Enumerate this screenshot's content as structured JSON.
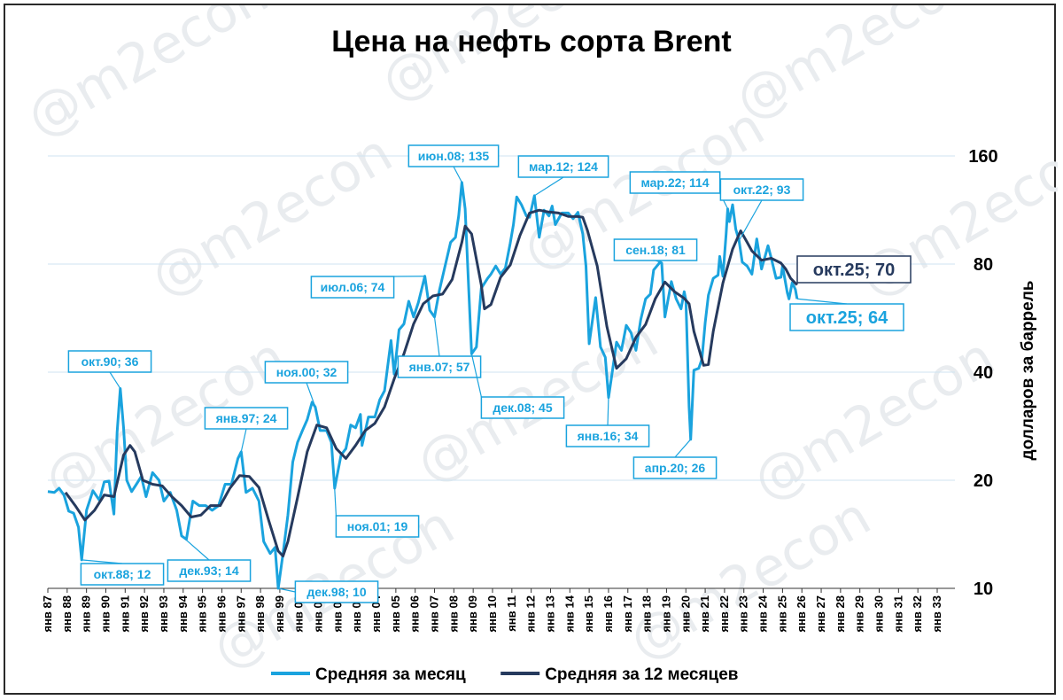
{
  "colors": {
    "monthly": "#1aa3de",
    "annual": "#263a5e",
    "grid": "#cfe3f2"
  },
  "watermark": "@m2econ",
  "chart_data": {
    "type": "line",
    "title": "Цена на нефть сорта Brent",
    "ylabel": "долларов за баррель",
    "yscale": "log",
    "ylim": [
      10,
      160
    ],
    "y_ticks": [
      "10",
      "20",
      "40",
      "80",
      "160"
    ],
    "x_range": [
      "1987-01",
      "2033-12"
    ],
    "x_ticks": [
      "янв 87",
      "янв 88",
      "янв 89",
      "янв 90",
      "янв 91",
      "янв 92",
      "янв 93",
      "янв 94",
      "янв 95",
      "янв 96",
      "янв 97",
      "янв 98",
      "янв 99",
      "янв 00",
      "янв 01",
      "янв 02",
      "янв 03",
      "янв 04",
      "янв 05",
      "янв 06",
      "янв 07",
      "янв 08",
      "янв 09",
      "янв 10",
      "янв 11",
      "янв 12",
      "янв 13",
      "янв 14",
      "янв 15",
      "янв 16",
      "янв 17",
      "янв 18",
      "янв 19",
      "янв 20",
      "янв 21",
      "янв 22",
      "янв 23",
      "янв 24",
      "янв 25",
      "янв 26",
      "янв 27",
      "янв 28",
      "янв 29",
      "янв 30",
      "янв 31",
      "янв 32",
      "янв 33"
    ],
    "legend_position": "bottom",
    "series": [
      {
        "name": "Средняя за месяц",
        "points": [
          [
            "1987-01",
            18.6
          ],
          [
            "1987-05",
            18.5
          ],
          [
            "1987-08",
            19.0
          ],
          [
            "1987-11",
            18.2
          ],
          [
            "1988-02",
            16.4
          ],
          [
            "1988-05",
            16.2
          ],
          [
            "1988-08",
            14.8
          ],
          [
            "1988-10",
            12.0
          ],
          [
            "1989-01",
            16.5
          ],
          [
            "1989-05",
            18.7
          ],
          [
            "1989-09",
            17.6
          ],
          [
            "1989-12",
            19.8
          ],
          [
            "1990-03",
            19.9
          ],
          [
            "1990-06",
            16.1
          ],
          [
            "1990-08",
            27.2
          ],
          [
            "1990-10",
            36.0
          ],
          [
            "1990-12",
            28.0
          ],
          [
            "1991-02",
            20.0
          ],
          [
            "1991-05",
            18.6
          ],
          [
            "1991-08",
            19.5
          ],
          [
            "1991-11",
            20.5
          ],
          [
            "1992-02",
            18.0
          ],
          [
            "1992-06",
            21.0
          ],
          [
            "1992-10",
            20.0
          ],
          [
            "1993-01",
            17.5
          ],
          [
            "1993-05",
            18.5
          ],
          [
            "1993-09",
            16.5
          ],
          [
            "1993-12",
            14.0
          ],
          [
            "1994-03",
            13.7
          ],
          [
            "1994-07",
            17.5
          ],
          [
            "1994-11",
            17.0
          ],
          [
            "1995-03",
            17.0
          ],
          [
            "1995-07",
            16.5
          ],
          [
            "1995-11",
            17.0
          ],
          [
            "1996-03",
            19.5
          ],
          [
            "1996-07",
            19.5
          ],
          [
            "1996-11",
            23.0
          ],
          [
            "1997-01",
            24.0
          ],
          [
            "1997-04",
            18.5
          ],
          [
            "1997-08",
            19.0
          ],
          [
            "1997-12",
            17.5
          ],
          [
            "1998-03",
            13.5
          ],
          [
            "1998-07",
            12.5
          ],
          [
            "1998-10",
            13.0
          ],
          [
            "1998-12",
            10.0
          ],
          [
            "1999-03",
            12.5
          ],
          [
            "1999-06",
            16.0
          ],
          [
            "1999-09",
            22.5
          ],
          [
            "1999-12",
            25.5
          ],
          [
            "2000-03",
            27.5
          ],
          [
            "2000-06",
            29.5
          ],
          [
            "2000-09",
            33.0
          ],
          [
            "2000-11",
            32.0
          ],
          [
            "2001-02",
            27.5
          ],
          [
            "2001-06",
            27.5
          ],
          [
            "2001-09",
            25.5
          ],
          [
            "2001-11",
            19.0
          ],
          [
            "2002-03",
            23.5
          ],
          [
            "2002-06",
            24.5
          ],
          [
            "2002-09",
            28.5
          ],
          [
            "2002-12",
            28.0
          ],
          [
            "2003-03",
            30.5
          ],
          [
            "2003-04",
            25.0
          ],
          [
            "2003-08",
            30.0
          ],
          [
            "2003-12",
            30.0
          ],
          [
            "2004-03",
            33.5
          ],
          [
            "2004-06",
            35.5
          ],
          [
            "2004-10",
            49.0
          ],
          [
            "2004-12",
            39.5
          ],
          [
            "2005-03",
            52.5
          ],
          [
            "2005-06",
            54.5
          ],
          [
            "2005-09",
            63.0
          ],
          [
            "2005-12",
            57.0
          ],
          [
            "2006-03",
            62.5
          ],
          [
            "2006-07",
            74.0
          ],
          [
            "2006-10",
            59.5
          ],
          [
            "2007-01",
            57.0
          ],
          [
            "2007-04",
            67.5
          ],
          [
            "2007-07",
            77.0
          ],
          [
            "2007-11",
            92.0
          ],
          [
            "2008-02",
            95.0
          ],
          [
            "2008-04",
            109.0
          ],
          [
            "2008-06",
            135.0
          ],
          [
            "2008-08",
            114.0
          ],
          [
            "2008-10",
            72.0
          ],
          [
            "2008-12",
            45.0
          ],
          [
            "2009-03",
            47.0
          ],
          [
            "2009-06",
            68.5
          ],
          [
            "2009-10",
            73.0
          ],
          [
            "2009-12",
            75.0
          ],
          [
            "2010-03",
            79.0
          ],
          [
            "2010-06",
            75.0
          ],
          [
            "2010-09",
            78.0
          ],
          [
            "2010-12",
            91.5
          ],
          [
            "2011-02",
            103.0
          ],
          [
            "2011-04",
            123.0
          ],
          [
            "2011-07",
            117.0
          ],
          [
            "2011-10",
            109.0
          ],
          [
            "2011-12",
            108.0
          ],
          [
            "2012-03",
            124.0
          ],
          [
            "2012-06",
            95.0
          ],
          [
            "2012-09",
            113.0
          ],
          [
            "2012-12",
            109.0
          ],
          [
            "2013-02",
            116.0
          ],
          [
            "2013-04",
            103.0
          ],
          [
            "2013-08",
            111.0
          ],
          [
            "2013-12",
            111.0
          ],
          [
            "2014-03",
            107.0
          ],
          [
            "2014-06",
            111.5
          ],
          [
            "2014-09",
            97.0
          ],
          [
            "2014-11",
            79.0
          ],
          [
            "2015-01",
            48.0
          ],
          [
            "2015-05",
            64.5
          ],
          [
            "2015-08",
            47.0
          ],
          [
            "2015-11",
            44.0
          ],
          [
            "2016-01",
            34.0
          ],
          [
            "2016-04",
            42.0
          ],
          [
            "2016-06",
            48.5
          ],
          [
            "2016-09",
            46.0
          ],
          [
            "2016-12",
            54.0
          ],
          [
            "2017-03",
            51.5
          ],
          [
            "2017-06",
            46.0
          ],
          [
            "2017-09",
            56.0
          ],
          [
            "2017-12",
            64.0
          ],
          [
            "2018-03",
            66.0
          ],
          [
            "2018-05",
            77.0
          ],
          [
            "2018-09",
            81.0
          ],
          [
            "2018-10",
            80.5
          ],
          [
            "2018-12",
            57.0
          ],
          [
            "2019-04",
            71.5
          ],
          [
            "2019-07",
            64.0
          ],
          [
            "2019-10",
            60.0
          ],
          [
            "2019-12",
            67.0
          ],
          [
            "2020-01",
            63.5
          ],
          [
            "2020-03",
            32.0
          ],
          [
            "2020-04",
            26.0
          ],
          [
            "2020-06",
            40.5
          ],
          [
            "2020-09",
            41.0
          ],
          [
            "2020-11",
            43.5
          ],
          [
            "2021-01",
            55.0
          ],
          [
            "2021-03",
            65.5
          ],
          [
            "2021-06",
            73.0
          ],
          [
            "2021-09",
            74.5
          ],
          [
            "2021-10",
            84.0
          ],
          [
            "2021-12",
            74.0
          ],
          [
            "2022-02",
            97.0
          ],
          [
            "2022-03",
            114.0
          ],
          [
            "2022-04",
            105.0
          ],
          [
            "2022-06",
            117.0
          ],
          [
            "2022-08",
            100.0
          ],
          [
            "2022-10",
            93.0
          ],
          [
            "2022-12",
            81.0
          ],
          [
            "2023-03",
            79.0
          ],
          [
            "2023-06",
            75.0
          ],
          [
            "2023-09",
            94.0
          ],
          [
            "2023-12",
            77.5
          ],
          [
            "2024-04",
            90.0
          ],
          [
            "2024-06",
            83.0
          ],
          [
            "2024-09",
            73.0
          ],
          [
            "2024-12",
            73.5
          ],
          [
            "2025-01",
            79.0
          ],
          [
            "2025-04",
            66.5
          ],
          [
            "2025-05",
            64.0
          ],
          [
            "2025-07",
            71.0
          ],
          [
            "2025-09",
            68.0
          ],
          [
            "2025-10",
            64.0
          ]
        ]
      },
      {
        "name": "Средняя за 12 месяцев",
        "points": [
          [
            "1987-12",
            18.5
          ],
          [
            "1988-06",
            17.0
          ],
          [
            "1988-12",
            15.5
          ],
          [
            "1989-06",
            16.5
          ],
          [
            "1989-12",
            18.2
          ],
          [
            "1990-06",
            18.0
          ],
          [
            "1990-12",
            23.5
          ],
          [
            "1991-04",
            25.0
          ],
          [
            "1991-07",
            24.0
          ],
          [
            "1991-12",
            20.0
          ],
          [
            "1992-06",
            19.5
          ],
          [
            "1992-12",
            19.3
          ],
          [
            "1993-06",
            18.0
          ],
          [
            "1993-12",
            17.0
          ],
          [
            "1994-06",
            15.8
          ],
          [
            "1994-12",
            16.0
          ],
          [
            "1995-06",
            17.0
          ],
          [
            "1995-12",
            17.0
          ],
          [
            "1996-06",
            19.0
          ],
          [
            "1996-12",
            20.6
          ],
          [
            "1997-06",
            20.5
          ],
          [
            "1997-12",
            19.1
          ],
          [
            "1998-06",
            15.5
          ],
          [
            "1998-12",
            12.7
          ],
          [
            "1999-03",
            12.3
          ],
          [
            "1999-06",
            13.5
          ],
          [
            "1999-12",
            17.9
          ],
          [
            "2000-06",
            24.0
          ],
          [
            "2000-12",
            28.5
          ],
          [
            "2001-06",
            28.0
          ],
          [
            "2001-12",
            24.5
          ],
          [
            "2002-06",
            23.0
          ],
          [
            "2002-12",
            25.0
          ],
          [
            "2003-06",
            27.5
          ],
          [
            "2003-12",
            28.8
          ],
          [
            "2004-06",
            32.0
          ],
          [
            "2004-12",
            38.3
          ],
          [
            "2005-06",
            45.0
          ],
          [
            "2005-12",
            54.5
          ],
          [
            "2006-06",
            62.0
          ],
          [
            "2006-12",
            65.2
          ],
          [
            "2007-06",
            66.0
          ],
          [
            "2007-12",
            72.5
          ],
          [
            "2008-06",
            92.0
          ],
          [
            "2008-08",
            102.0
          ],
          [
            "2008-12",
            97.0
          ],
          [
            "2009-06",
            70.0
          ],
          [
            "2009-08",
            60.0
          ],
          [
            "2009-12",
            61.7
          ],
          [
            "2010-06",
            73.5
          ],
          [
            "2010-12",
            79.5
          ],
          [
            "2011-06",
            96.0
          ],
          [
            "2011-12",
            111.0
          ],
          [
            "2012-06",
            113.0
          ],
          [
            "2012-12",
            111.7
          ],
          [
            "2013-06",
            111.0
          ],
          [
            "2013-12",
            108.6
          ],
          [
            "2014-06",
            108.5
          ],
          [
            "2014-09",
            108.0
          ],
          [
            "2014-12",
            99.0
          ],
          [
            "2015-06",
            79.0
          ],
          [
            "2015-12",
            53.6
          ],
          [
            "2016-06",
            41.0
          ],
          [
            "2016-12",
            43.6
          ],
          [
            "2017-06",
            50.0
          ],
          [
            "2017-12",
            54.3
          ],
          [
            "2018-06",
            64.0
          ],
          [
            "2018-12",
            71.3
          ],
          [
            "2019-06",
            67.0
          ],
          [
            "2019-12",
            64.2
          ],
          [
            "2020-03",
            62.0
          ],
          [
            "2020-06",
            52.0
          ],
          [
            "2020-12",
            41.8
          ],
          [
            "2021-03",
            42.0
          ],
          [
            "2021-06",
            52.0
          ],
          [
            "2021-12",
            70.9
          ],
          [
            "2022-06",
            88.0
          ],
          [
            "2022-11",
            99.0
          ],
          [
            "2023-03",
            92.0
          ],
          [
            "2023-06",
            87.0
          ],
          [
            "2023-12",
            82.0
          ],
          [
            "2024-06",
            83.0
          ],
          [
            "2024-12",
            80.5
          ],
          [
            "2025-03",
            77.5
          ],
          [
            "2025-06",
            73.0
          ],
          [
            "2025-10",
            70.0
          ]
        ]
      }
    ],
    "annotations": [
      {
        "text": "окт.90; 36",
        "x": "1990-10",
        "y": 36
      },
      {
        "text": "окт.88; 12",
        "x": "1988-10",
        "y": 12
      },
      {
        "text": "янв.97; 24",
        "x": "1997-01",
        "y": 24
      },
      {
        "text": "дек.93; 14",
        "x": "1993-12",
        "y": 14
      },
      {
        "text": "дек.98; 10",
        "x": "1998-12",
        "y": 10
      },
      {
        "text": "ноя.00; 32",
        "x": "2000-11",
        "y": 32
      },
      {
        "text": "ноя.01; 19",
        "x": "2001-11",
        "y": 19
      },
      {
        "text": "июл.06; 74",
        "x": "2006-07",
        "y": 74
      },
      {
        "text": "янв.07; 57",
        "x": "2007-01",
        "y": 57
      },
      {
        "text": "июн.08; 135",
        "x": "2008-06",
        "y": 135
      },
      {
        "text": "дек.08; 45",
        "x": "2008-12",
        "y": 45
      },
      {
        "text": "мар.12; 124",
        "x": "2012-03",
        "y": 124
      },
      {
        "text": "янв.16; 34",
        "x": "2016-01",
        "y": 34
      },
      {
        "text": "сен.18; 81",
        "x": "2018-09",
        "y": 81
      },
      {
        "text": "апр.20; 26",
        "x": "2020-04",
        "y": 26
      },
      {
        "text": "мар.22; 114",
        "x": "2022-03",
        "y": 114
      },
      {
        "text": "окт.22; 93",
        "x": "2022-10",
        "y": 93
      },
      {
        "text": "окт.25; 70",
        "x": "2025-10",
        "y": 70,
        "series": "Средняя за 12 месяцев"
      },
      {
        "text": "окт.25; 64",
        "x": "2025-10",
        "y": 64,
        "series": "Средняя за месяц"
      }
    ]
  }
}
